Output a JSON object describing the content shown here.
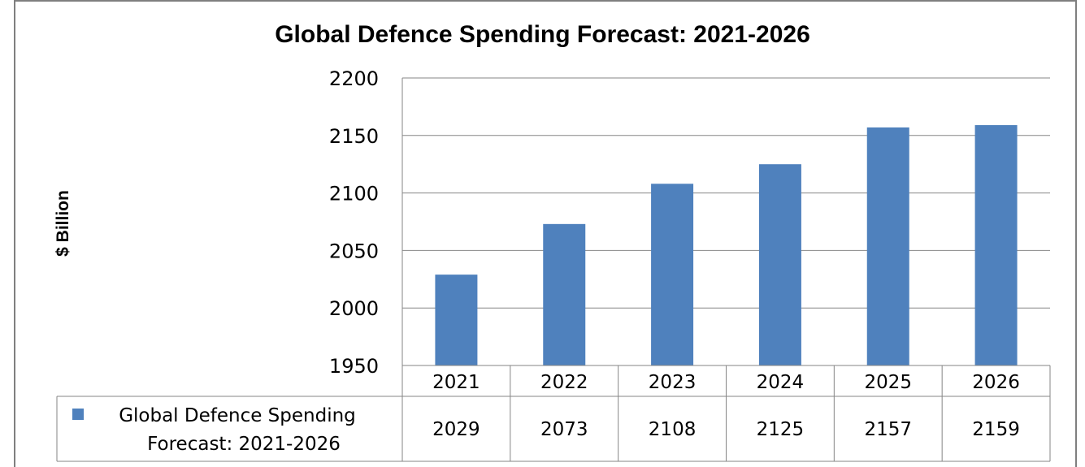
{
  "chart_data": {
    "type": "bar",
    "title": "Global Defence Spending Forecast: 2021-2026",
    "ylabel": "$ Billion",
    "xlabel": "",
    "categories": [
      "2021",
      "2022",
      "2023",
      "2024",
      "2025",
      "2026"
    ],
    "series": [
      {
        "name": "Global Defence Spending Forecast: 2021-2026",
        "name_lines": [
          "Global Defence Spending",
          "Forecast: 2021-2026"
        ],
        "values": [
          2029,
          2073,
          2108,
          2125,
          2157,
          2159
        ],
        "value_labels": [
          "2029",
          "2073",
          "2108",
          "2125",
          "2157",
          "2159"
        ],
        "color": "#4f81bd"
      }
    ],
    "ylim": [
      1950,
      2200
    ],
    "yticks": [
      "1950",
      "2000",
      "2050",
      "2100",
      "2150",
      "2200"
    ],
    "grid": true,
    "legend_placement": "data-table-left"
  }
}
